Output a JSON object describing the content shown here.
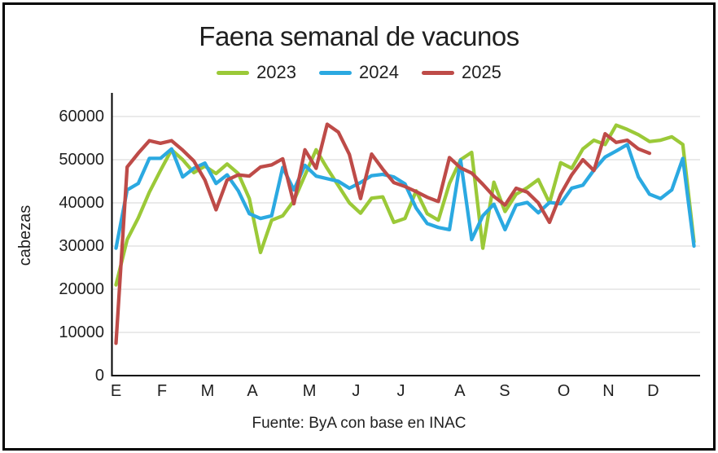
{
  "title": "Faena semanal de vacunos",
  "footer": "Fuente: ByA con base en INAC",
  "y_axis": {
    "label": "cabezas",
    "ticks": [
      60000,
      50000,
      40000,
      30000,
      20000,
      10000,
      0
    ]
  },
  "x_axis": {
    "months": [
      {
        "label": "E",
        "week": 1
      },
      {
        "label": "F",
        "week": 5.14
      },
      {
        "label": "M",
        "week": 9.24
      },
      {
        "label": "A",
        "week": 13.27
      },
      {
        "label": "M",
        "week": 18.4
      },
      {
        "label": "J",
        "week": 22.6
      },
      {
        "label": "J",
        "week": 26.63
      },
      {
        "label": "A",
        "week": 31.94
      },
      {
        "label": "S",
        "week": 35.97
      },
      {
        "label": "O",
        "week": 41.28
      },
      {
        "label": "N",
        "week": 45.31
      },
      {
        "label": "D",
        "week": 49.33
      }
    ]
  },
  "chart_data": {
    "type": "line",
    "title": "Faena semanal de vacunos",
    "ylabel": "cabezas",
    "xlabel": "",
    "x_unit": "semana del año (1-53)",
    "ylim": [
      0,
      60000
    ],
    "ytick_step": 10000,
    "grid": true,
    "grid_color": "#d6d6d6",
    "axis_color": "#000000",
    "legend_position": "top",
    "series": [
      {
        "name": "2023",
        "color": "#9BC938",
        "values": [
          21000,
          31500,
          36500,
          42500,
          47500,
          52300,
          50000,
          47000,
          48500,
          46800,
          49000,
          46800,
          41000,
          28500,
          36000,
          37000,
          40500,
          46400,
          52300,
          48000,
          44000,
          40000,
          37600,
          41100,
          41400,
          35500,
          36400,
          42800,
          37500,
          36000,
          44500,
          50000,
          51700,
          29500,
          44800,
          38000,
          42000,
          43500,
          45400,
          40000,
          49300,
          48000,
          52500,
          54500,
          53500,
          58000,
          57000,
          55800,
          54200,
          54500,
          55300,
          53500,
          31000
        ]
      },
      {
        "name": "2024",
        "color": "#2BA9E1",
        "values": [
          29500,
          43000,
          44500,
          50300,
          50300,
          52500,
          46000,
          48000,
          49200,
          44500,
          46500,
          42800,
          37500,
          36400,
          37000,
          48200,
          43000,
          48700,
          46200,
          45600,
          45000,
          43400,
          44700,
          46300,
          46600,
          46000,
          44400,
          38800,
          35200,
          34300,
          33800,
          49900,
          31500,
          37000,
          39700,
          33800,
          39500,
          40100,
          37700,
          40100,
          39800,
          43400,
          44100,
          47600,
          50600,
          52000,
          53500,
          46000,
          42000,
          41000,
          43000,
          50300,
          30000
        ]
      },
      {
        "name": "2025",
        "color": "#BE4B48",
        "values": [
          7500,
          48300,
          51500,
          54400,
          53800,
          54400,
          52200,
          49700,
          45300,
          38400,
          45300,
          46500,
          46200,
          48300,
          48800,
          50200,
          39800,
          52300,
          48000,
          58200,
          56400,
          51200,
          41000,
          51300,
          47800,
          44700,
          43800,
          42600,
          41300,
          40300,
          50500,
          48100,
          46900,
          44300,
          41500,
          39500,
          43400,
          42500,
          40000,
          35500,
          42000,
          46500,
          50000,
          47500,
          56000,
          54000,
          54500,
          52500,
          51500
        ]
      }
    ]
  }
}
